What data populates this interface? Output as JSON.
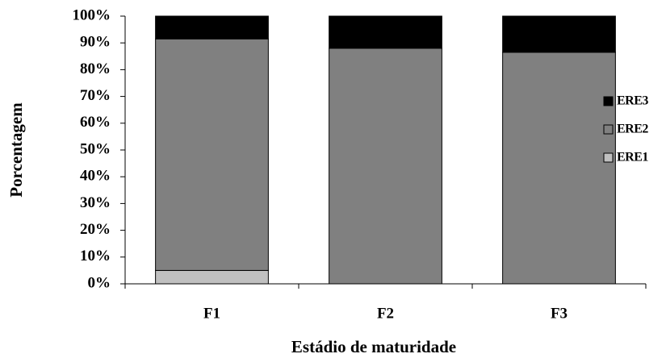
{
  "chart_data": {
    "type": "stacked_bar",
    "x_label": "Estádio de maturidade",
    "y_label": "Porcentagem",
    "categories": [
      "F1",
      "F2",
      "F3"
    ],
    "series": [
      {
        "name": "ERE1",
        "color": "#c0c0c0",
        "values": [
          5,
          0,
          0
        ]
      },
      {
        "name": "ERE2",
        "color": "#808080",
        "values": [
          86.5,
          88,
          86.5
        ]
      },
      {
        "name": "ERE3",
        "color": "#000000",
        "values": [
          8.5,
          12,
          13.5
        ]
      }
    ],
    "ylim": [
      0,
      100
    ],
    "yticks": [
      {
        "value": 0,
        "label": "0%"
      },
      {
        "value": 10,
        "label": "10%"
      },
      {
        "value": 20,
        "label": "20%"
      },
      {
        "value": 30,
        "label": "30%"
      },
      {
        "value": 40,
        "label": "40%"
      },
      {
        "value": 50,
        "label": "50%"
      },
      {
        "value": 60,
        "label": "60%"
      },
      {
        "value": 70,
        "label": "70%"
      },
      {
        "value": 80,
        "label": "80%"
      },
      {
        "value": 90,
        "label": "90%"
      },
      {
        "value": 100,
        "label": "100%"
      }
    ],
    "legend": "right"
  }
}
